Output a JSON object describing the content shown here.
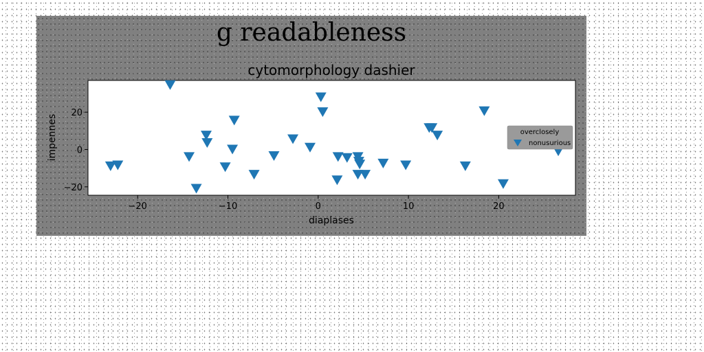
{
  "chart_data": {
    "type": "scatter",
    "title": "g readableness",
    "subtitle": "cytomorphology dashier",
    "xlabel": "diaplases",
    "ylabel": "impennes",
    "xlim": [
      -25.5,
      28.5
    ],
    "ylim": [
      -24.5,
      37
    ],
    "xticks": [
      -20,
      -10,
      0,
      10,
      20
    ],
    "yticks": [
      -20,
      0,
      20
    ],
    "grid": false,
    "legend": {
      "title": "overclosely",
      "placement": "right",
      "entries": [
        "nonusurious"
      ]
    },
    "marker": "triangle-down",
    "marker_color": "#1f77b4",
    "series": [
      {
        "name": "nonusurious",
        "x": [
          -23.0,
          -22.2,
          -16.4,
          -14.3,
          -13.5,
          -12.4,
          -12.3,
          -10.3,
          -9.5,
          -9.3,
          -7.1,
          -4.9,
          -2.8,
          -0.9,
          0.3,
          0.5,
          2.1,
          2.2,
          3.2,
          4.4,
          4.4,
          4.5,
          4.6,
          5.2,
          7.2,
          9.7,
          12.3,
          12.6,
          13.2,
          16.3,
          18.4,
          20.5,
          26.6
        ],
        "y": [
          -9.0,
          -8.5,
          34.5,
          -4.0,
          -21.0,
          7.5,
          3.5,
          -9.5,
          0.0,
          15.5,
          -13.5,
          -3.5,
          5.5,
          1.0,
          28.0,
          20.0,
          -16.5,
          -4.0,
          -4.5,
          -13.5,
          -4.0,
          -6.5,
          -8.0,
          -13.5,
          -7.5,
          -8.5,
          11.5,
          11.5,
          7.5,
          -9.0,
          20.5,
          -18.5,
          -1.0
        ]
      }
    ]
  }
}
